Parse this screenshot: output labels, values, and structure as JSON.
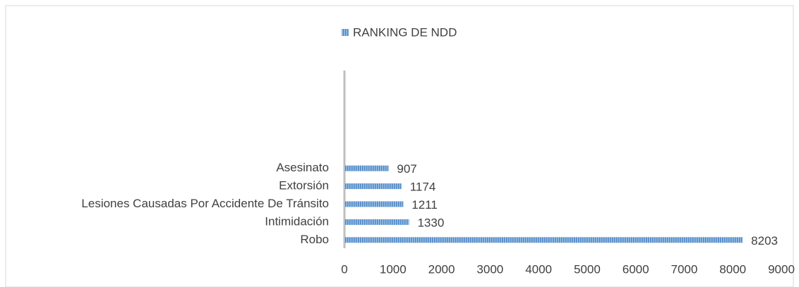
{
  "chart_data": {
    "type": "bar",
    "orientation": "horizontal",
    "categories": [
      "Robo",
      "Intimidación",
      "Lesiones Causadas Por Accidente De Tránsito",
      "Extorsión",
      "Asesinato",
      null,
      null,
      null,
      null,
      null
    ],
    "series": [
      {
        "name": "RANKING DE NDD",
        "color": "#5b9bd5",
        "values": [
          8203,
          1330,
          1211,
          1174,
          907,
          null,
          null,
          null,
          null,
          null
        ]
      }
    ],
    "xlim": [
      0,
      9000
    ],
    "xticks": [
      0,
      1000,
      2000,
      3000,
      4000,
      5000,
      6000,
      7000,
      8000,
      9000
    ],
    "grid": false,
    "legend": "top"
  }
}
